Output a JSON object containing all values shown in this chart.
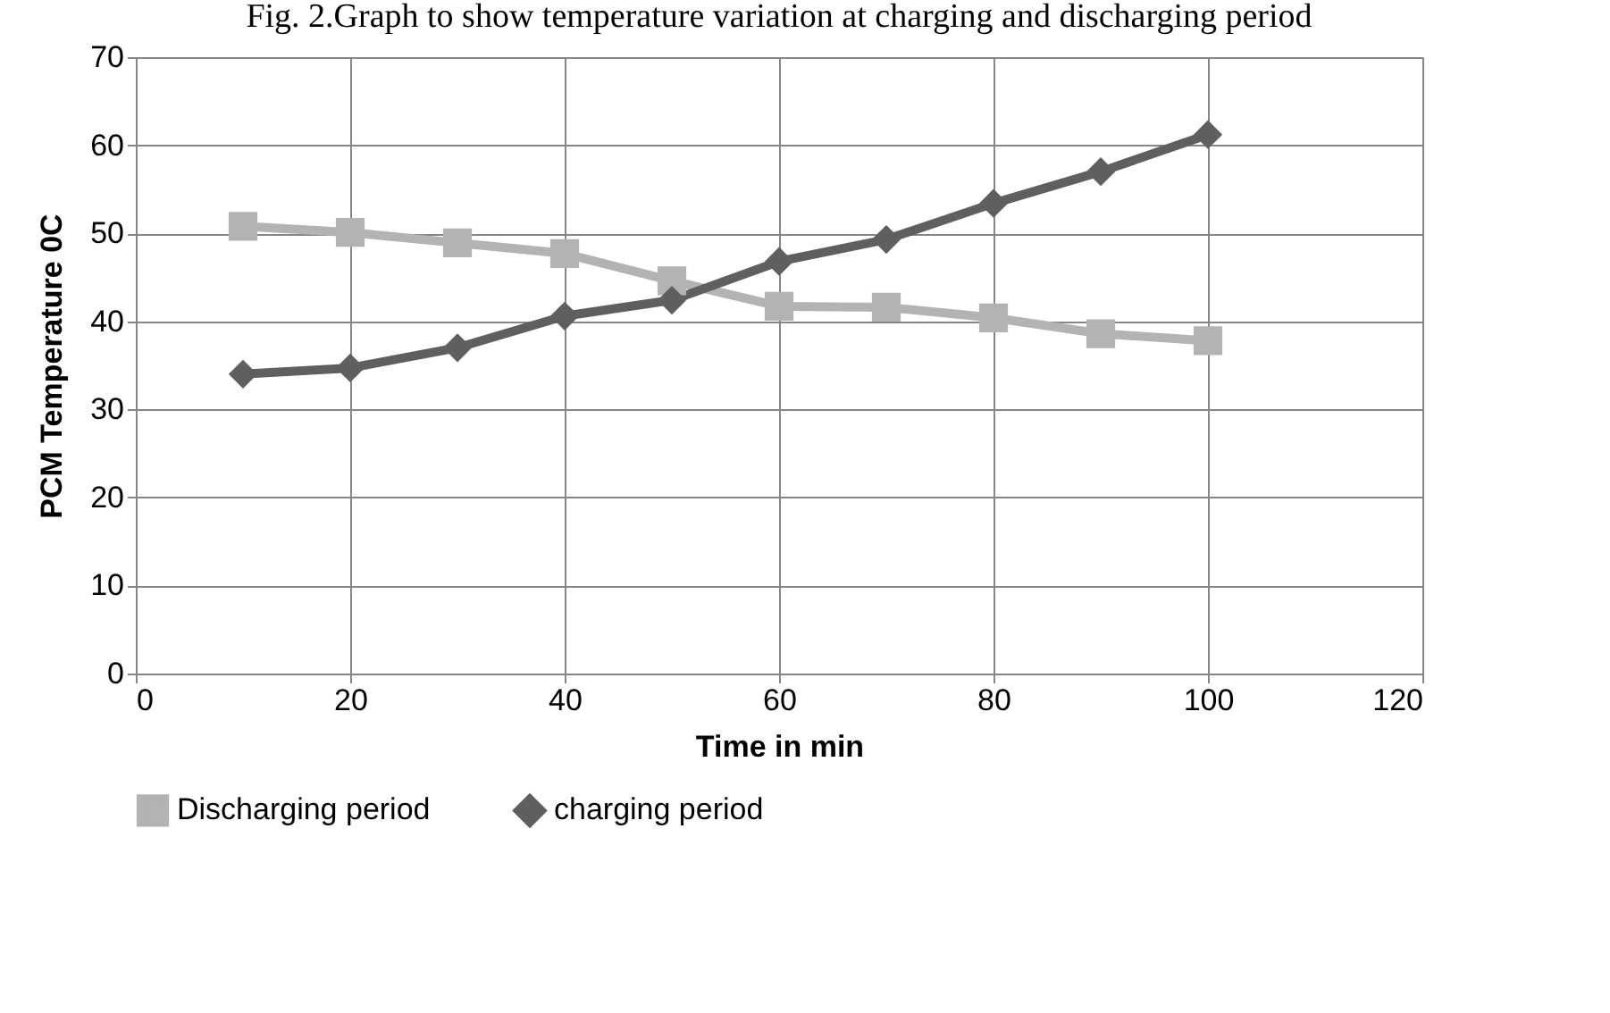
{
  "chart_data": {
    "type": "line",
    "title": "Fig. 2.Graph to show temperature variation at charging and discharging period",
    "xlabel": "Time in min",
    "ylabel": "PCM Temperature 0C",
    "x": [
      10,
      20,
      30,
      40,
      50,
      60,
      70,
      80,
      90,
      100
    ],
    "series": [
      {
        "name": "Discharging period",
        "color": "#b3b3b3",
        "marker": "square",
        "values": [
          50.8,
          50.1,
          48.9,
          47.7,
          44.6,
          41.7,
          41.6,
          40.4,
          38.6,
          37.8
        ]
      },
      {
        "name": "charging period",
        "color": "#5f5f5f",
        "marker": "diamond",
        "values": [
          34.0,
          34.7,
          37.0,
          40.6,
          42.4,
          46.8,
          49.3,
          53.4,
          57.0,
          61.2
        ]
      }
    ],
    "xlim": [
      0,
      120
    ],
    "xticks": [
      0,
      20,
      40,
      60,
      80,
      100,
      120
    ],
    "ylim": [
      0,
      70
    ],
    "yticks": [
      0,
      10,
      20,
      30,
      40,
      50,
      60,
      70
    ],
    "grid": true,
    "legend": "bottom",
    "line_style": "solid"
  }
}
